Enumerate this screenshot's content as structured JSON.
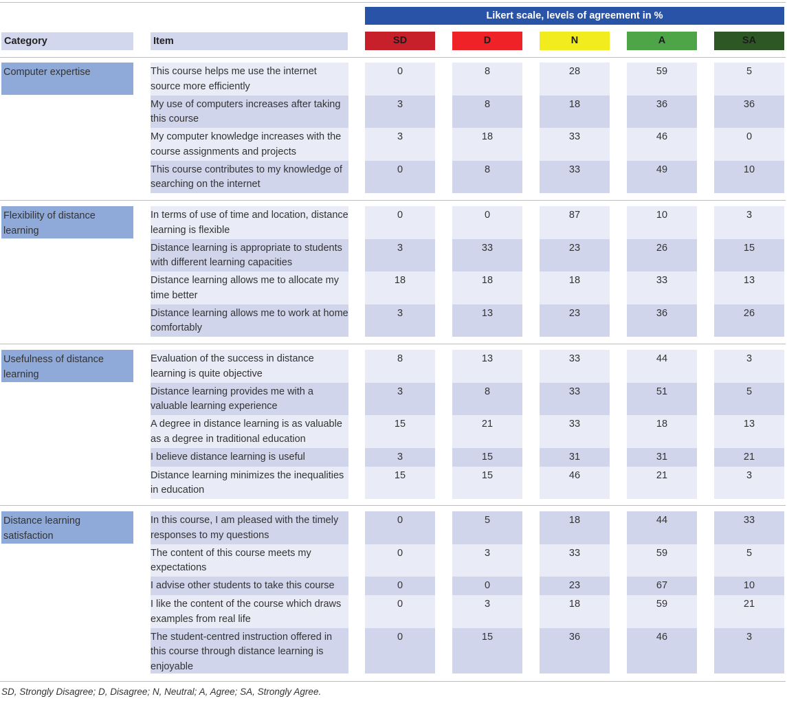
{
  "header": {
    "likert_title": "Likert scale, levels of agreement in %",
    "category_label": "Category",
    "item_label": "Item",
    "scales": [
      {
        "label": "SD",
        "color": "#c8202a"
      },
      {
        "label": "D",
        "color": "#ee2227"
      },
      {
        "label": "N",
        "color": "#f2ec1f"
      },
      {
        "label": "A",
        "color": "#4ea548"
      },
      {
        "label": "SA",
        "color": "#2e5726"
      }
    ]
  },
  "colors": {
    "likert_bar": "#2853a6",
    "category_fill": "#8fa9d8",
    "header_fill": "#d2d7ed",
    "row_light": "#e9ebf6",
    "row_dark": "#d0d5ec"
  },
  "groups": [
    {
      "category": "Computer expertise",
      "rows": [
        {
          "item": "This course helps me use the internet source more efficiently",
          "values": [
            0,
            8,
            28,
            59,
            5
          ]
        },
        {
          "item": "My use of computers increases after taking this course",
          "values": [
            3,
            8,
            18,
            36,
            36
          ]
        },
        {
          "item": "My computer knowledge increases with the course assignments and projects",
          "values": [
            3,
            18,
            33,
            46,
            0
          ]
        },
        {
          "item": "This course contributes to my knowledge of searching on the internet",
          "values": [
            0,
            8,
            33,
            49,
            10
          ]
        }
      ]
    },
    {
      "category": "Flexibility of distance learning",
      "rows": [
        {
          "item": "In terms of use of time and location, distance learning is flexible",
          "values": [
            0,
            0,
            87,
            10,
            3
          ]
        },
        {
          "item": "Distance learning is appropriate to students with different learning capacities",
          "values": [
            3,
            33,
            23,
            26,
            15
          ]
        },
        {
          "item": "Distance learning allows me to allocate my time better",
          "values": [
            18,
            18,
            18,
            33,
            13
          ]
        },
        {
          "item": "Distance learning allows me to work at home comfortably",
          "values": [
            3,
            13,
            23,
            36,
            26
          ]
        }
      ]
    },
    {
      "category": "Usefulness of distance learning",
      "rows": [
        {
          "item": "Evaluation of the success in distance learning is quite objective",
          "values": [
            8,
            13,
            33,
            44,
            3
          ]
        },
        {
          "item": "Distance learning provides me with a valuable learning experience",
          "values": [
            3,
            8,
            33,
            51,
            5
          ]
        },
        {
          "item": "A degree in distance learning is as valuable as a degree in traditional education",
          "values": [
            15,
            21,
            33,
            18,
            13
          ]
        },
        {
          "item": "I believe distance learning is useful",
          "values": [
            3,
            15,
            31,
            31,
            21
          ]
        },
        {
          "item": "Distance learning minimizes the inequalities in education",
          "values": [
            15,
            15,
            46,
            21,
            3
          ]
        }
      ]
    },
    {
      "category": "Distance learning satisfaction",
      "rows": [
        {
          "item": "In this course, I am pleased with the timely responses to my questions",
          "values": [
            0,
            5,
            18,
            44,
            33
          ]
        },
        {
          "item": "The content of this course meets my expectations",
          "values": [
            0,
            3,
            33,
            59,
            5
          ]
        },
        {
          "item": "I advise other students to take this course",
          "values": [
            0,
            0,
            23,
            67,
            10
          ]
        },
        {
          "item": "I like the content of the course which draws examples from real life",
          "values": [
            0,
            3,
            18,
            59,
            21
          ]
        },
        {
          "item": "The student-centred instruction offered in this course through distance learning is enjoyable",
          "values": [
            0,
            15,
            36,
            46,
            3
          ]
        }
      ]
    }
  ],
  "footnote": "SD, Strongly Disagree; D, Disagree; N, Neutral; A, Agree; SA, Strongly Agree."
}
